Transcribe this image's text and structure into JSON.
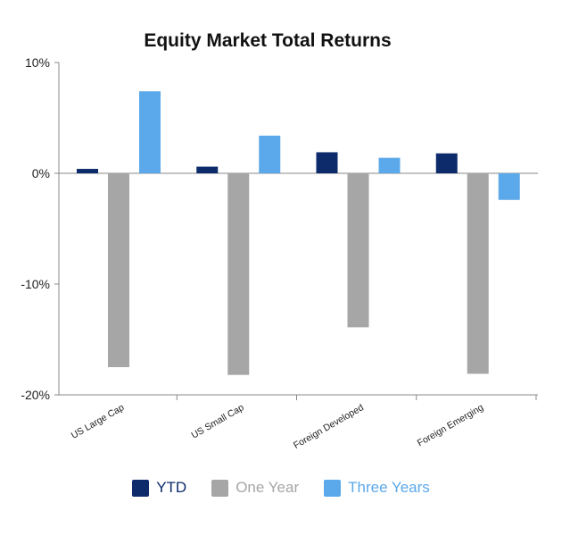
{
  "chart_data": {
    "type": "bar",
    "title": "Equity Market Total Returns",
    "xlabel": "",
    "ylabel": "",
    "categories": [
      "US Large Cap",
      "US Small Cap",
      "Foreign Developed",
      "Foreign Emerging"
    ],
    "series": [
      {
        "name": "YTD",
        "color": "#0d2b6b",
        "values": [
          0.4,
          0.6,
          1.9,
          1.8
        ]
      },
      {
        "name": "One Year",
        "color": "#a6a6a6",
        "values": [
          -17.5,
          -18.2,
          -13.9,
          -18.1
        ]
      },
      {
        "name": "Three Years",
        "color": "#5ba8ea",
        "values": [
          7.4,
          3.4,
          1.4,
          -2.4
        ]
      }
    ],
    "ylim": [
      -20,
      10
    ],
    "yticks": [
      10,
      0,
      -10,
      -20
    ],
    "ytick_labels": [
      "10%",
      "0%",
      "-10%",
      "-20%"
    ],
    "grid": false,
    "legend_position": "bottom"
  }
}
